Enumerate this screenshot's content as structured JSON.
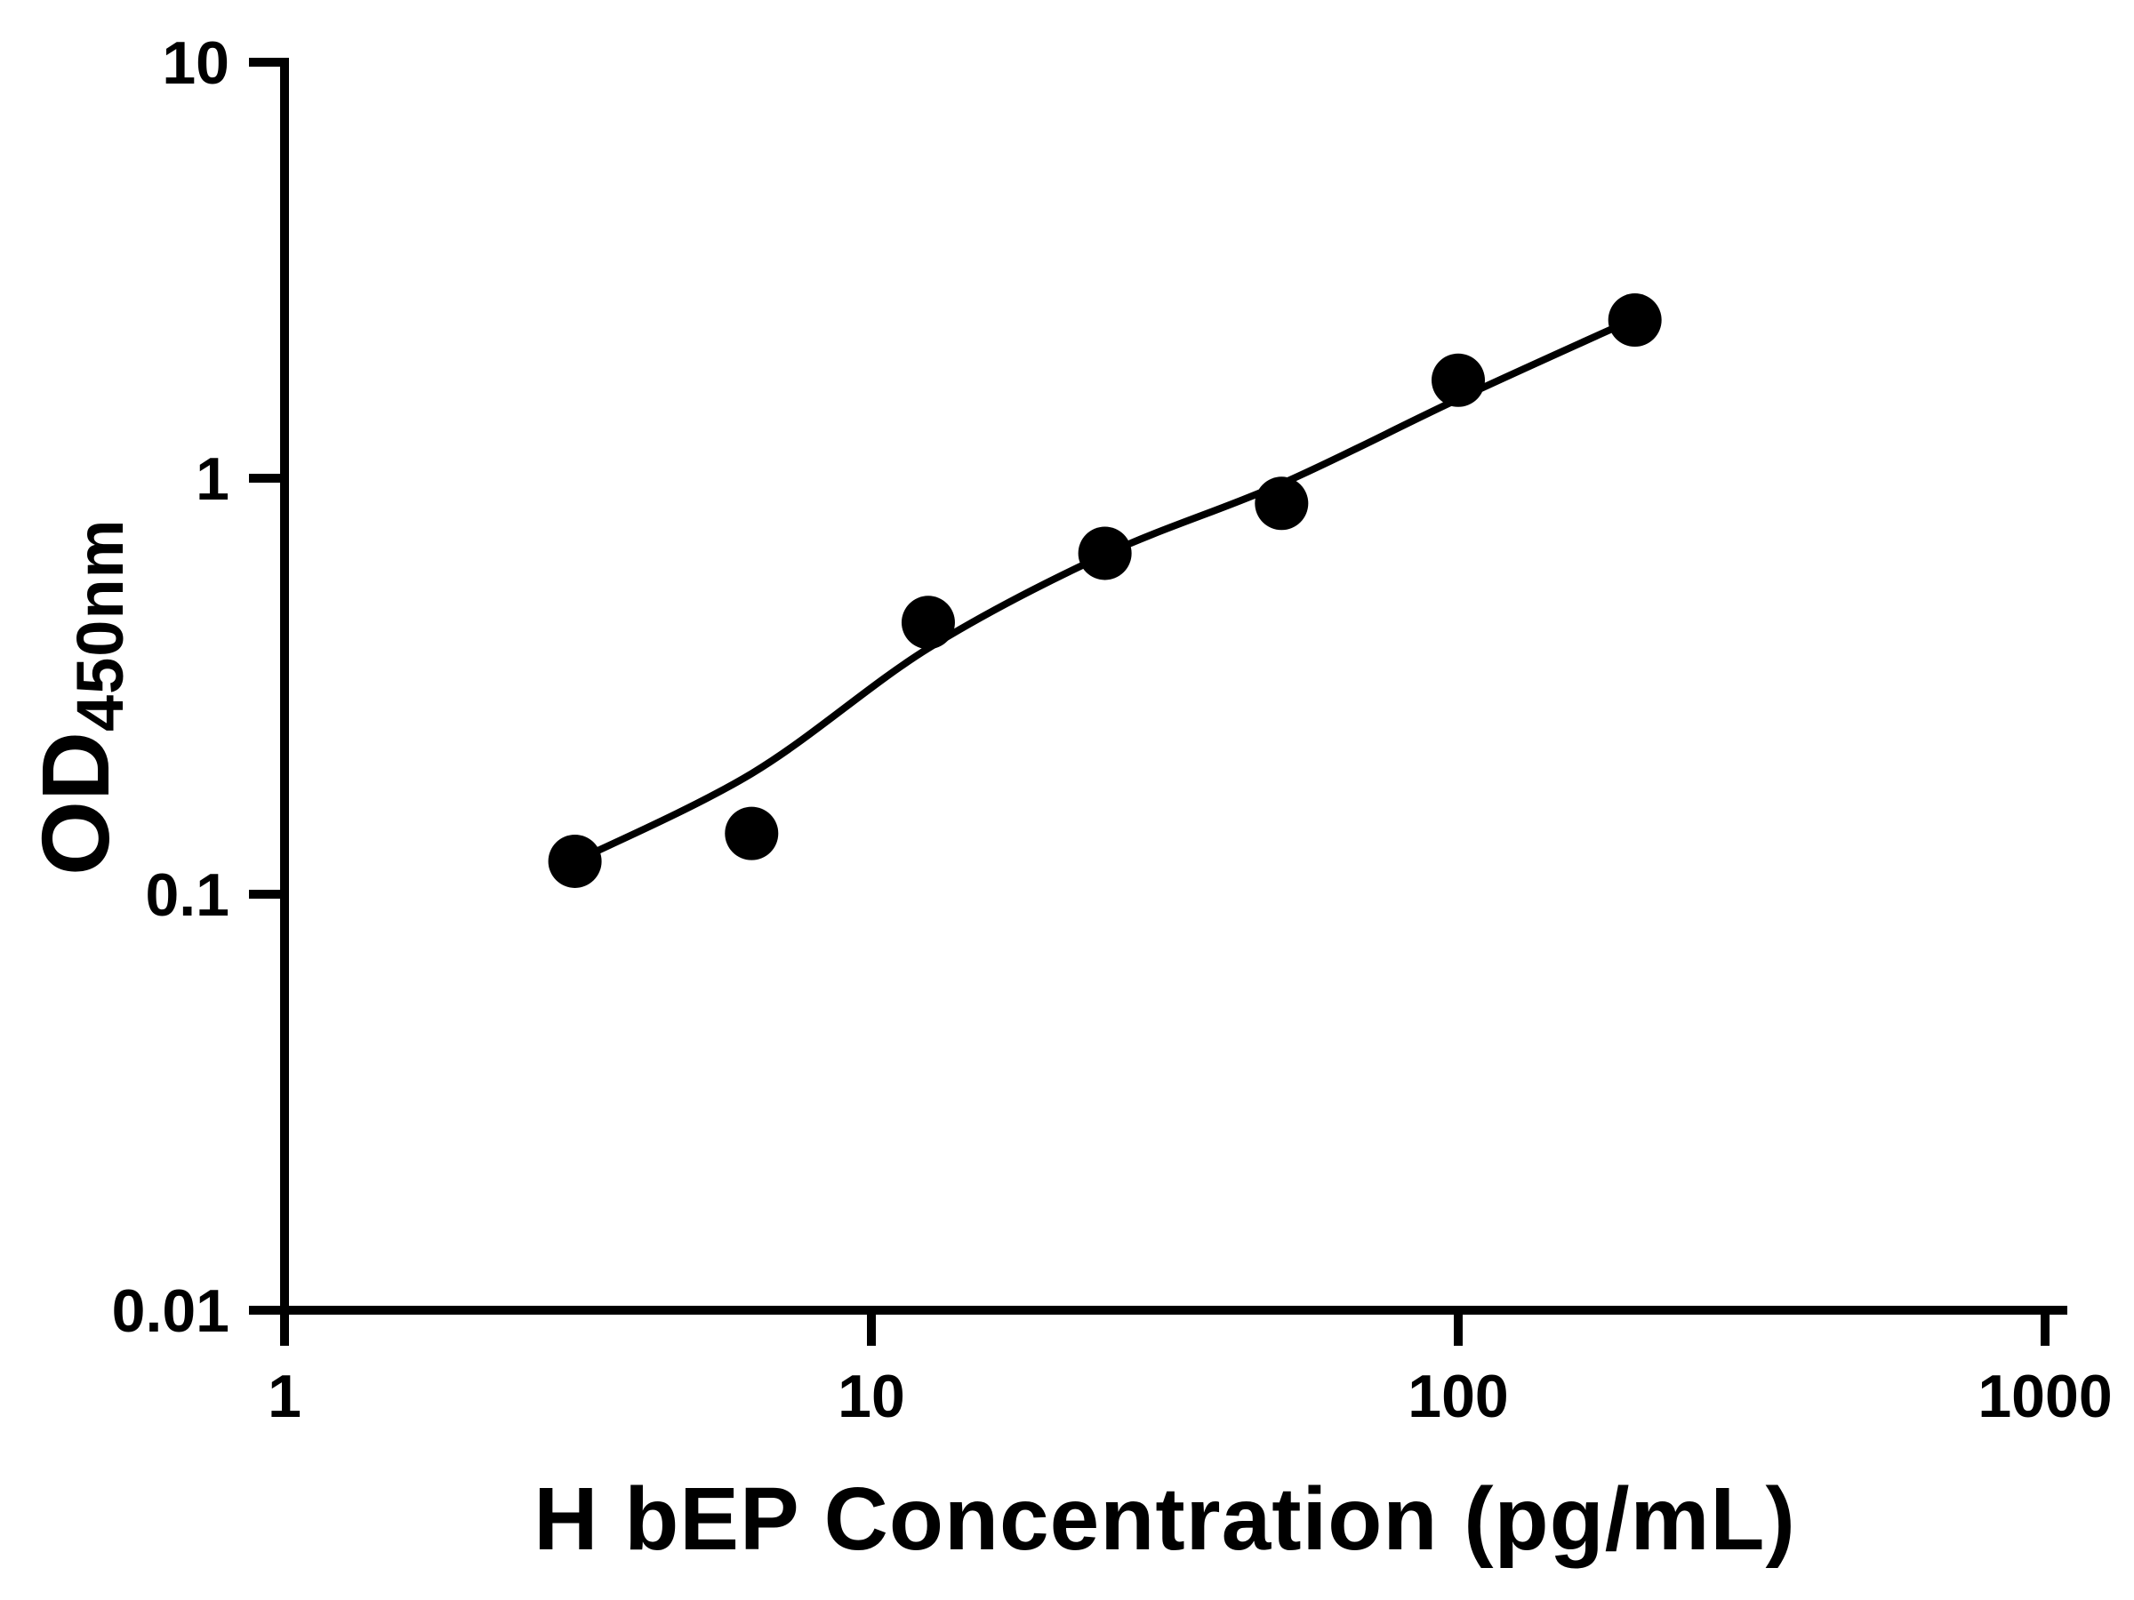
{
  "chart_data": {
    "type": "scatter",
    "title": "",
    "xlabel": "H bEP Concentration (pg/mL)",
    "ylabel": "OD450nm",
    "ylabel_main": "OD",
    "ylabel_sub": "450nm",
    "xscale": "log",
    "yscale": "log",
    "xlim": [
      1,
      1000
    ],
    "ylim": [
      0.01,
      10
    ],
    "grid": false,
    "legend": false,
    "x_tick_values": [
      1,
      10,
      100,
      1000
    ],
    "x_tick_labels": [
      "1",
      "10",
      "100",
      "1000"
    ],
    "y_tick_values": [
      10,
      1,
      0.1,
      0.01
    ],
    "y_tick_labels": [
      "10",
      "1",
      "0.1",
      "0.01"
    ],
    "points": [
      {
        "x": 3.125,
        "y": 0.12
      },
      {
        "x": 6.25,
        "y": 0.14
      },
      {
        "x": 12.5,
        "y": 0.45
      },
      {
        "x": 25,
        "y": 0.66
      },
      {
        "x": 50,
        "y": 0.87
      },
      {
        "x": 100,
        "y": 1.72
      },
      {
        "x": 200,
        "y": 2.4
      }
    ],
    "fit_curve": [
      [
        3.05,
        0.118
      ],
      [
        6.25,
        0.195
      ],
      [
        12.5,
        0.39
      ],
      [
        25,
        0.655
      ],
      [
        50,
        0.97
      ],
      [
        100,
        1.55
      ],
      [
        200,
        2.42
      ]
    ],
    "marker_color": "#000000",
    "line_color": "#000000",
    "axis_color": "#000000",
    "background": "#ffffff"
  }
}
